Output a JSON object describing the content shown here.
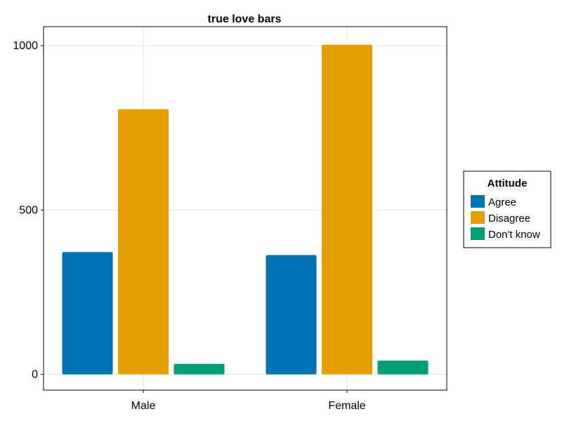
{
  "chart_data": {
    "type": "bar",
    "title": "true love  bars",
    "xlabel": "",
    "ylabel": "",
    "categories": [
      "Male",
      "Female"
    ],
    "series": [
      {
        "name": "Agree",
        "values": [
          372,
          363
        ],
        "color": "#0072b2"
      },
      {
        "name": "Disagree",
        "values": [
          807,
          1003
        ],
        "color": "#e69f00"
      },
      {
        "name": "Don't know",
        "values": [
          32,
          42
        ],
        "color": "#009e73"
      }
    ],
    "ylim": [
      -48,
      1058
    ],
    "yticks": [
      0,
      500,
      1000
    ],
    "grid": true,
    "legend": {
      "title": "Attitude",
      "placement": "right"
    }
  }
}
